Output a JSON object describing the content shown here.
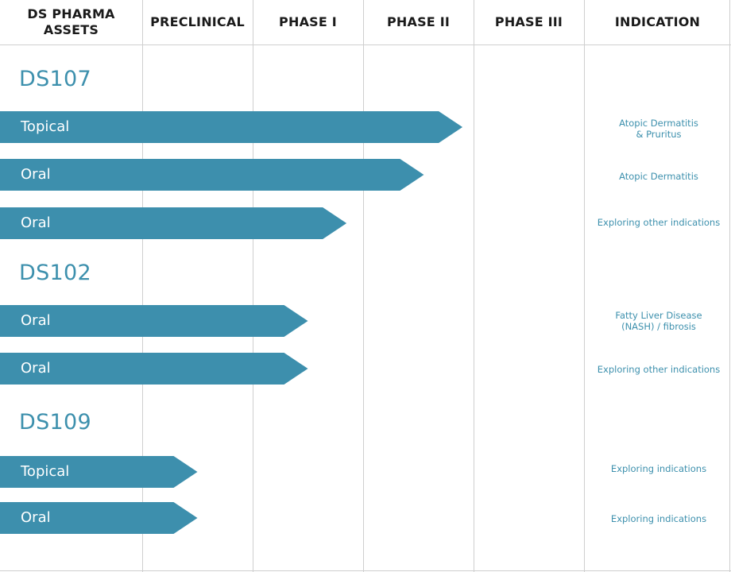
{
  "columns": [
    "DS PHARMA\nASSETS",
    "PRECLINICAL",
    "PHASE I",
    "PHASE II",
    "PHASE III",
    "INDICATION"
  ],
  "bar_color": "#3d8fad",
  "text_accent": "#3d90ad",
  "chart_data": {
    "type": "bar",
    "orientation": "horizontal",
    "stage_scale": [
      "Preclinical",
      "Phase I",
      "Phase II",
      "Phase III"
    ],
    "assets": [
      {
        "name": "DS107",
        "programs": [
          {
            "route": "Topical",
            "progress_stage": 2.9,
            "indication": "Atopic Dermatitis\n& Pruritus"
          },
          {
            "route": "Oral",
            "progress_stage": 2.55,
            "indication": "Atopic Dermatitis"
          },
          {
            "route": "Oral",
            "progress_stage": 1.85,
            "indication": "Exploring other indications"
          }
        ]
      },
      {
        "name": "DS102",
        "programs": [
          {
            "route": "Oral",
            "progress_stage": 1.5,
            "indication": "Fatty Liver Disease\n(NASH) / fibrosis"
          },
          {
            "route": "Oral",
            "progress_stage": 1.5,
            "indication": "Exploring other indications"
          }
        ]
      },
      {
        "name": "DS109",
        "programs": [
          {
            "route": "Topical",
            "progress_stage": 0.5,
            "indication": "Exploring indications"
          },
          {
            "route": "Oral",
            "progress_stage": 0.5,
            "indication": "Exploring indications"
          }
        ]
      }
    ]
  }
}
